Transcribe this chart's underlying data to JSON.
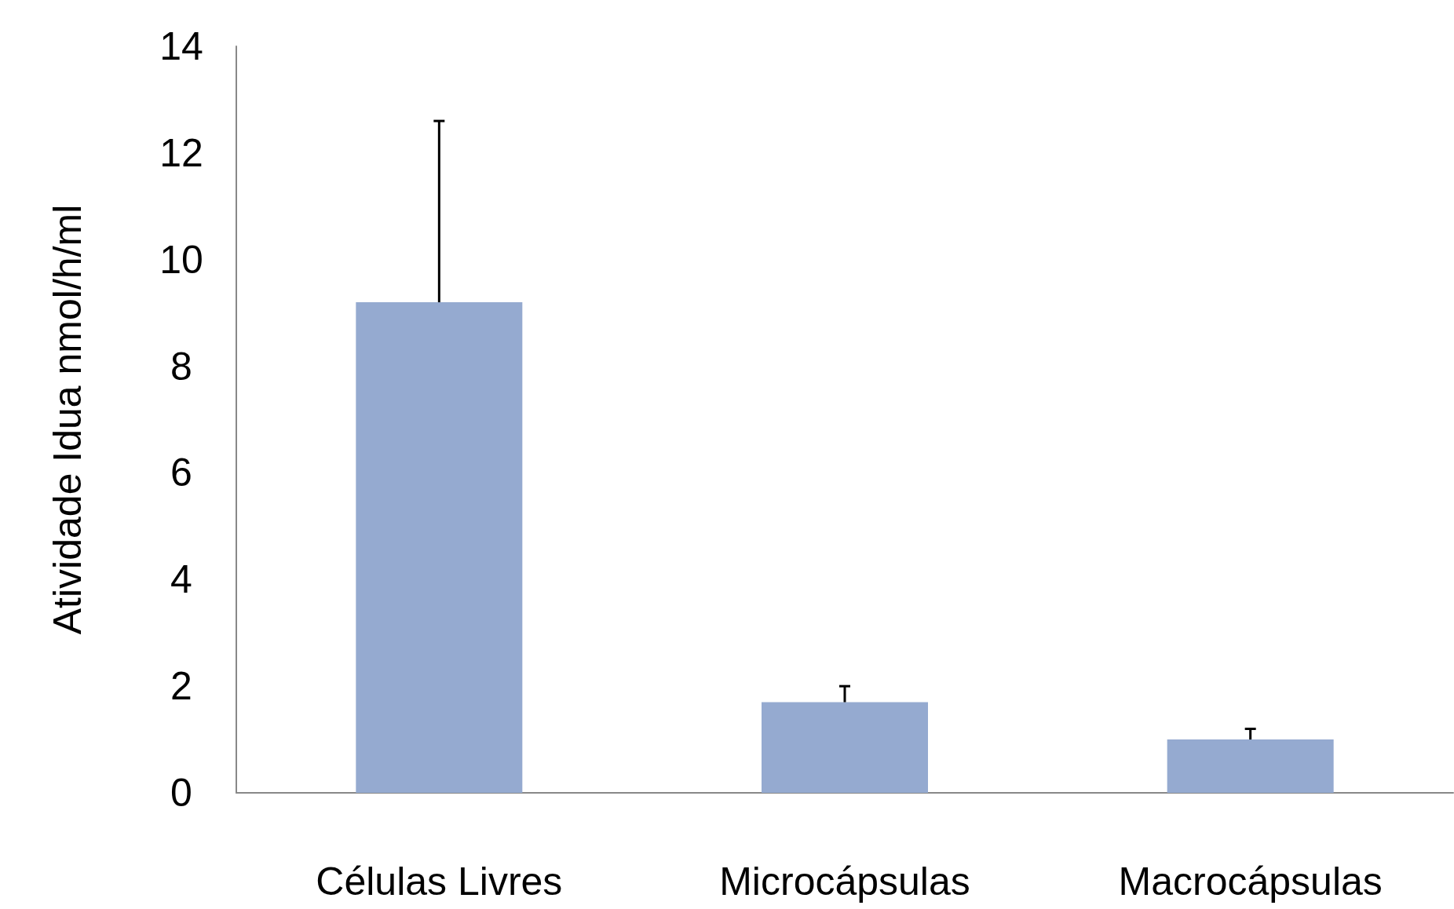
{
  "chart_data": {
    "type": "bar",
    "ylabel": "Atividade Idua nmol/h/ml",
    "categories": [
      "Células Livres",
      "Microcápsulas",
      "Macrocápsulas"
    ],
    "values": [
      9.2,
      1.7,
      1.0
    ],
    "errors": [
      [
        9.2,
        12.6
      ],
      [
        1.7,
        2.0
      ],
      [
        1.0,
        1.2
      ]
    ],
    "color": "#95aad0",
    "ylim": [
      0,
      14
    ],
    "yticks": [
      0,
      2,
      4,
      6,
      8,
      10,
      12,
      14
    ]
  }
}
